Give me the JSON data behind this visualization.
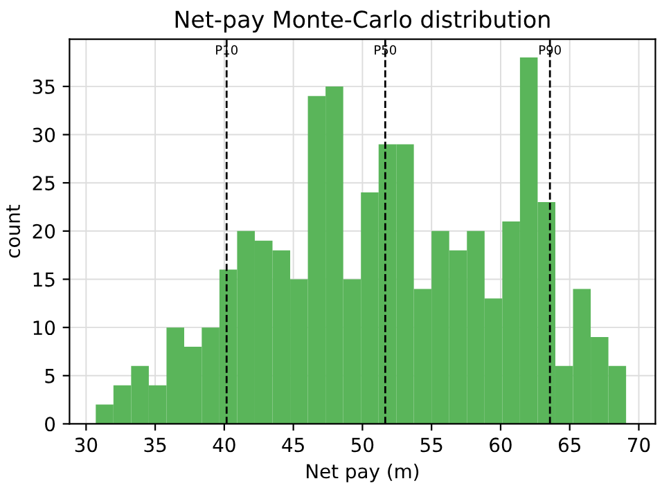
{
  "chart_data": {
    "type": "histogram",
    "title": "Net-pay Monte-Carlo distribution",
    "xlabel": "Net pay (m)",
    "ylabel": "count",
    "bins": [
      30.7,
      31.98,
      33.26,
      34.54,
      35.82,
      37.1,
      38.37,
      39.65,
      40.93,
      42.21,
      43.49,
      44.77,
      46.05,
      47.33,
      48.61,
      49.89,
      51.17,
      52.45,
      53.72,
      55.0,
      56.28,
      57.56,
      58.84,
      60.12,
      61.4,
      62.68,
      63.96,
      65.24,
      66.52,
      67.8,
      69.08
    ],
    "values": [
      2,
      4,
      6,
      4,
      10,
      8,
      10,
      16,
      20,
      19,
      18,
      15,
      34,
      35,
      15,
      24,
      29,
      29,
      14,
      20,
      18,
      20,
      13,
      21,
      38,
      23,
      6,
      14,
      9,
      6
    ],
    "color": "#5ab55a",
    "xlim": [
      28.8,
      71.2
    ],
    "ylim": [
      0,
      39.9
    ],
    "xticks": [
      30,
      35,
      40,
      45,
      50,
      55,
      60,
      65,
      70
    ],
    "yticks": [
      0,
      5,
      10,
      15,
      20,
      25,
      30,
      35
    ],
    "grid": true,
    "ref_lines": [
      {
        "axis": "x",
        "value": 40.17,
        "label": "P10",
        "color": "#000000",
        "line_style": "dashed"
      },
      {
        "axis": "x",
        "value": 51.65,
        "label": "P50",
        "color": "#000000",
        "line_style": "dashed"
      },
      {
        "axis": "x",
        "value": 63.57,
        "label": "P90",
        "color": "#000000",
        "line_style": "dashed"
      }
    ]
  }
}
